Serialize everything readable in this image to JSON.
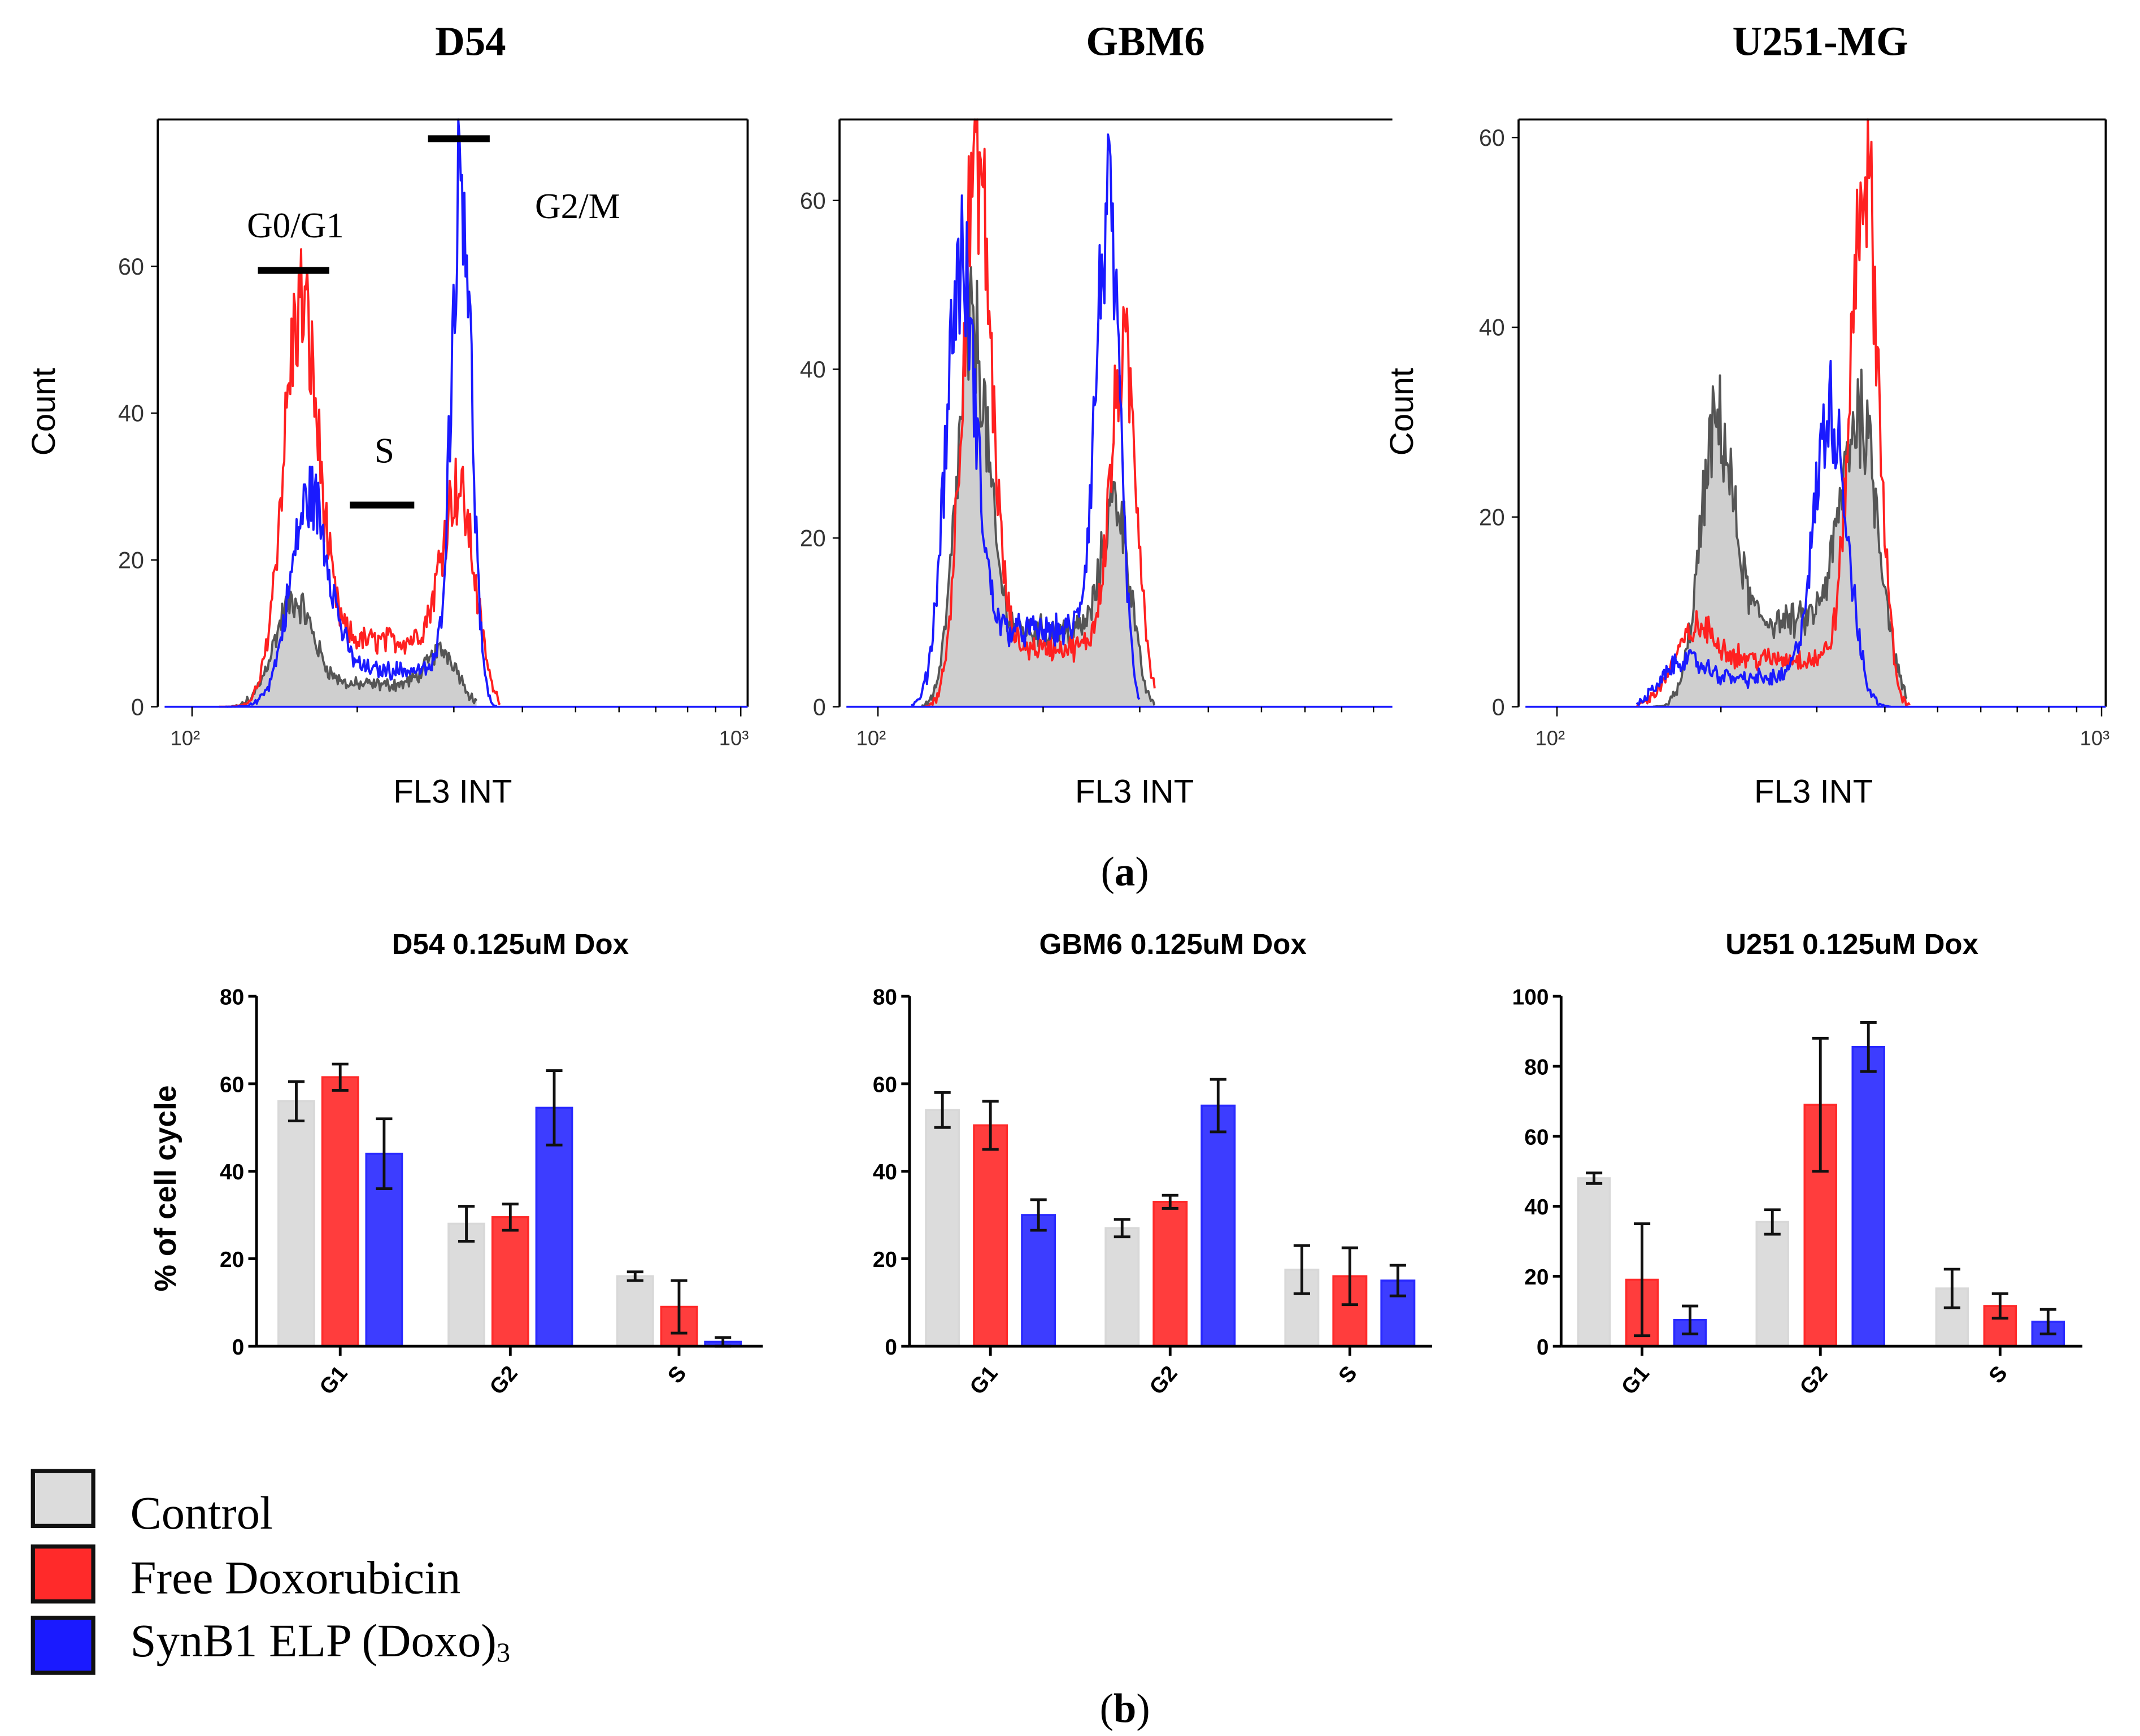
{
  "figure": {
    "panel_a_label": "a",
    "panel_b_label": "b",
    "legend": [
      {
        "label": "Control",
        "color": "#dcdcdc"
      },
      {
        "label": "Free Doxorubicin",
        "color": "#ff2a2a"
      },
      {
        "label": "SynB1 ELP (Doxo)",
        "subscript": "3",
        "color": "#1a1aff"
      }
    ]
  },
  "colors": {
    "control_fill": "#cfcfcf",
    "control_line": "#555555",
    "red": "#ff2020",
    "blue": "#1a1aff",
    "gray_bar": "#dcdcdc",
    "red_bar": "#ff3d3d",
    "blue_bar": "#3d3dff"
  },
  "chart_data": [
    {
      "type": "line",
      "title": "D54",
      "xlabel": "FL3 INT",
      "ylabel": "Count",
      "xscale": "log",
      "xlim": [
        100,
        1000
      ],
      "ylim": [
        0,
        80
      ],
      "yticks": [
        0,
        20,
        40,
        60
      ],
      "xtick_labels": [
        "10²",
        "10³"
      ],
      "annotations": [
        "G0/G1",
        "S",
        "G2/M"
      ],
      "series": [
        {
          "name": "Control",
          "range": [
            118,
            330
          ],
          "s_level": 3,
          "peaks": [
            {
              "fl3": 152,
              "count": 13,
              "sd": 0.035
            },
            {
              "fl3": 290,
              "count": 6,
              "sd": 0.03
            }
          ]
        },
        {
          "name": "Free Doxorubicin",
          "range": [
            112,
            365
          ],
          "s_level": 9,
          "peaks": [
            {
              "fl3": 157,
              "count": 50,
              "sd": 0.032
            },
            {
              "fl3": 308,
              "count": 25,
              "sd": 0.03
            }
          ]
        },
        {
          "name": "SynB1 ELP (Doxo)3",
          "range": [
            115,
            360
          ],
          "s_level": 5,
          "peaks": [
            {
              "fl3": 163,
              "count": 26,
              "sd": 0.035
            },
            {
              "fl3": 310,
              "count": 72,
              "sd": 0.018
            }
          ]
        }
      ]
    },
    {
      "type": "line",
      "title": "GBM6",
      "xlabel": "FL3 INT",
      "ylabel": "",
      "xscale": "log",
      "xlim": [
        100,
        1000
      ],
      "ylim": [
        0,
        69.6
      ],
      "yticks": [
        0,
        20,
        40,
        60
      ],
      "xtick_labels": [
        "10²"
      ],
      "series": [
        {
          "name": "Control",
          "range": [
            120,
            320
          ],
          "s_level": 9,
          "peaks": [
            {
              "fl3": 148,
              "count": 40,
              "sd": 0.028
            },
            {
              "fl3": 274,
              "count": 20,
              "sd": 0.025
            }
          ]
        },
        {
          "name": "Free Doxorubicin",
          "range": [
            122,
            320
          ],
          "s_level": 7,
          "peaks": [
            {
              "fl3": 151,
              "count": 62,
              "sd": 0.026
            },
            {
              "fl3": 282,
              "count": 38,
              "sd": 0.025
            }
          ]
        },
        {
          "name": "SynB1 ELP (Doxo)3",
          "range": [
            115,
            300
          ],
          "s_level": 9,
          "peaks": [
            {
              "fl3": 141,
              "count": 48,
              "sd": 0.027
            },
            {
              "fl3": 263,
              "count": 54,
              "sd": 0.022
            }
          ]
        }
      ]
    },
    {
      "type": "line",
      "title": "U251-MG",
      "xlabel": "FL3 INT",
      "ylabel": "Count",
      "xscale": "log",
      "xlim": [
        100,
        1000
      ],
      "ylim": [
        0,
        61.9
      ],
      "yticks": [
        0,
        20,
        40,
        60
      ],
      "xtick_labels": [
        "10²",
        "10³"
      ],
      "series": [
        {
          "name": "Control",
          "range": [
            150,
            440
          ],
          "s_level": 9,
          "peaks": [
            {
              "fl3": 195,
              "count": 25,
              "sd": 0.03
            },
            {
              "fl3": 364,
              "count": 26,
              "sd": 0.035
            }
          ]
        },
        {
          "name": "Free Doxorubicin",
          "range": [
            140,
            445
          ],
          "s_level": 5,
          "peaks": [
            {
              "fl3": 174,
              "count": 5,
              "sd": 0.04
            },
            {
              "fl3": 368,
              "count": 55,
              "sd": 0.025
            }
          ]
        },
        {
          "name": "SynB1 ELP (Doxo)3",
          "range": [
            140,
            410
          ],
          "s_level": 3,
          "peaks": [
            {
              "fl3": 165,
              "count": 3,
              "sd": 0.04
            },
            {
              "fl3": 319,
              "count": 30,
              "sd": 0.03
            }
          ]
        }
      ]
    },
    {
      "type": "bar",
      "title": "D54 0.125uM Dox",
      "ylabel": "% of cell cycle",
      "ylim": [
        0,
        80
      ],
      "yticks": [
        0,
        20,
        40,
        60,
        80
      ],
      "categories": [
        "G1",
        "G2",
        "S"
      ],
      "series": [
        {
          "name": "Control",
          "values": [
            56,
            28,
            16
          ],
          "errors": [
            4.5,
            4,
            1
          ]
        },
        {
          "name": "Free Doxorubicin",
          "values": [
            61.5,
            29.5,
            9
          ],
          "errors": [
            3,
            3,
            6
          ]
        },
        {
          "name": "SynB1 ELP (Doxo)3",
          "values": [
            44,
            54.5,
            1
          ],
          "errors": [
            8,
            8.5,
            1
          ]
        }
      ]
    },
    {
      "type": "bar",
      "title": "GBM6 0.125uM Dox",
      "ylabel": "",
      "ylim": [
        0,
        80
      ],
      "yticks": [
        0,
        20,
        40,
        60,
        80
      ],
      "categories": [
        "G1",
        "G2",
        "S"
      ],
      "series": [
        {
          "name": "Control",
          "values": [
            54,
            27,
            17.5
          ],
          "errors": [
            4,
            2,
            5.5
          ]
        },
        {
          "name": "Free Doxorubicin",
          "values": [
            50.5,
            33,
            16
          ],
          "errors": [
            5.5,
            1.5,
            6.5
          ]
        },
        {
          "name": "SynB1 ELP (Doxo)3",
          "values": [
            30,
            55,
            15
          ],
          "errors": [
            3.5,
            6,
            3.5
          ]
        }
      ]
    },
    {
      "type": "bar",
      "title": "U251 0.125uM Dox",
      "ylabel": "",
      "ylim": [
        0,
        100
      ],
      "yticks": [
        0,
        20,
        40,
        60,
        80,
        100
      ],
      "categories": [
        "G1",
        "G2",
        "S"
      ],
      "series": [
        {
          "name": "Control",
          "values": [
            48,
            35.5,
            16.5
          ],
          "errors": [
            1.5,
            3.5,
            5.5
          ]
        },
        {
          "name": "Free Doxorubicin",
          "values": [
            19,
            69,
            11.5
          ],
          "errors": [
            16,
            19,
            3.5
          ]
        },
        {
          "name": "SynB1 ELP (Doxo)3",
          "values": [
            7.5,
            85.5,
            7
          ],
          "errors": [
            4,
            7,
            3.5
          ]
        }
      ]
    }
  ]
}
